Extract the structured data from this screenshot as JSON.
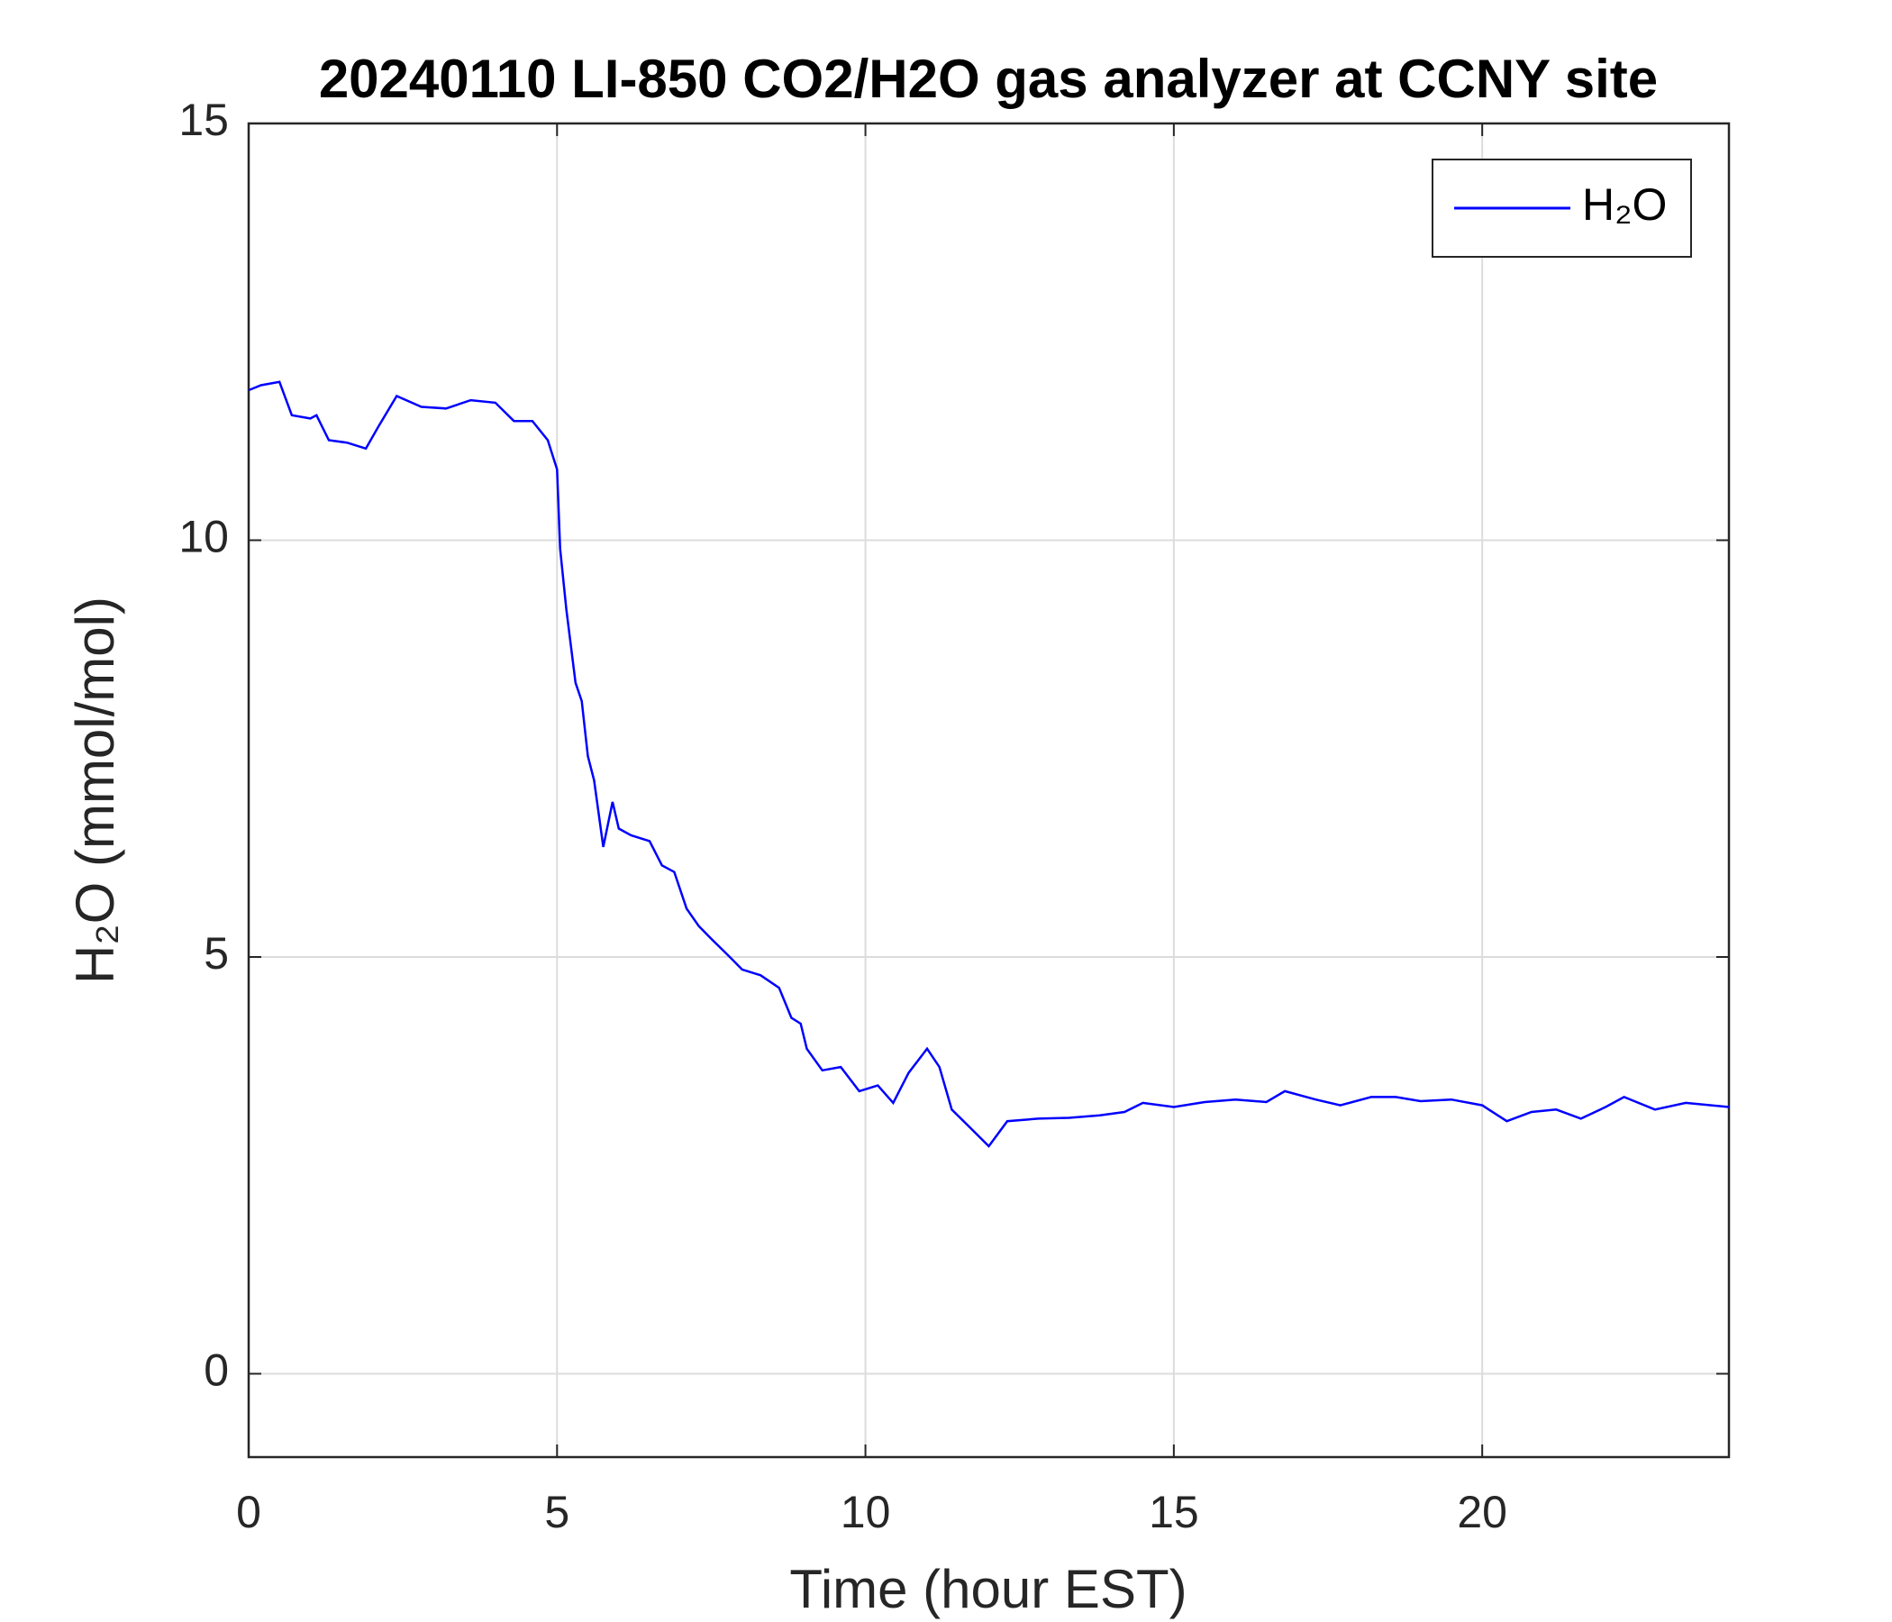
{
  "chart_data": {
    "type": "line",
    "title": "20240110 LI-850 CO2/H2O gas analyzer at CCNY site",
    "x_label": "Time (hour EST)",
    "y_label": "H₂O (mmol/mol)",
    "xlim": [
      0,
      24
    ],
    "xticks": [
      0,
      5,
      10,
      15,
      20
    ],
    "ylim": [
      -1,
      15
    ],
    "yticks": [
      0,
      5,
      10,
      15
    ],
    "grid": true,
    "legend": "northeast",
    "x": [
      0,
      0.2,
      0.5,
      0.7,
      1.0,
      1.1,
      1.3,
      1.6,
      1.9,
      2.1,
      2.4,
      2.8,
      3.2,
      3.6,
      4.0,
      4.3,
      4.6,
      4.85,
      5.0,
      5.05,
      5.15,
      5.3,
      5.4,
      5.5,
      5.6,
      5.75,
      5.9,
      6.0,
      6.2,
      6.5,
      6.7,
      6.9,
      7.1,
      7.3,
      7.5,
      7.8,
      8.0,
      8.3,
      8.6,
      8.8,
      8.95,
      9.05,
      9.3,
      9.6,
      9.9,
      10.2,
      10.45,
      10.7,
      11.0,
      11.2,
      11.4,
      11.7,
      12.0,
      12.3,
      12.8,
      13.3,
      13.8,
      14.2,
      14.5,
      15.0,
      15.5,
      16.0,
      16.5,
      16.8,
      17.3,
      17.7,
      18.2,
      18.6,
      19.0,
      19.5,
      20.0,
      20.4,
      20.8,
      21.2,
      21.6,
      22.0,
      22.3,
      22.8,
      23.3,
      24.0
    ],
    "series": [
      {
        "name": "H₂O",
        "color": "#0000ff",
        "values": [
          11.8,
          11.86,
          11.9,
          11.5,
          11.46,
          11.5,
          11.2,
          11.17,
          11.1,
          11.36,
          11.73,
          11.6,
          11.58,
          11.68,
          11.65,
          11.43,
          11.43,
          11.2,
          10.85,
          9.9,
          9.17,
          8.29,
          8.07,
          7.41,
          7.12,
          6.32,
          6.86,
          6.54,
          6.46,
          6.39,
          6.1,
          6.02,
          5.58,
          5.37,
          5.22,
          5.0,
          4.85,
          4.78,
          4.63,
          4.27,
          4.2,
          3.9,
          3.64,
          3.68,
          3.39,
          3.46,
          3.25,
          3.61,
          3.9,
          3.68,
          3.17,
          2.95,
          2.73,
          3.03,
          3.06,
          3.07,
          3.1,
          3.14,
          3.25,
          3.2,
          3.26,
          3.29,
          3.26,
          3.39,
          3.29,
          3.22,
          3.32,
          3.32,
          3.27,
          3.29,
          3.22,
          3.03,
          3.14,
          3.17,
          3.06,
          3.2,
          3.32,
          3.17,
          3.25,
          3.2
        ]
      }
    ]
  }
}
